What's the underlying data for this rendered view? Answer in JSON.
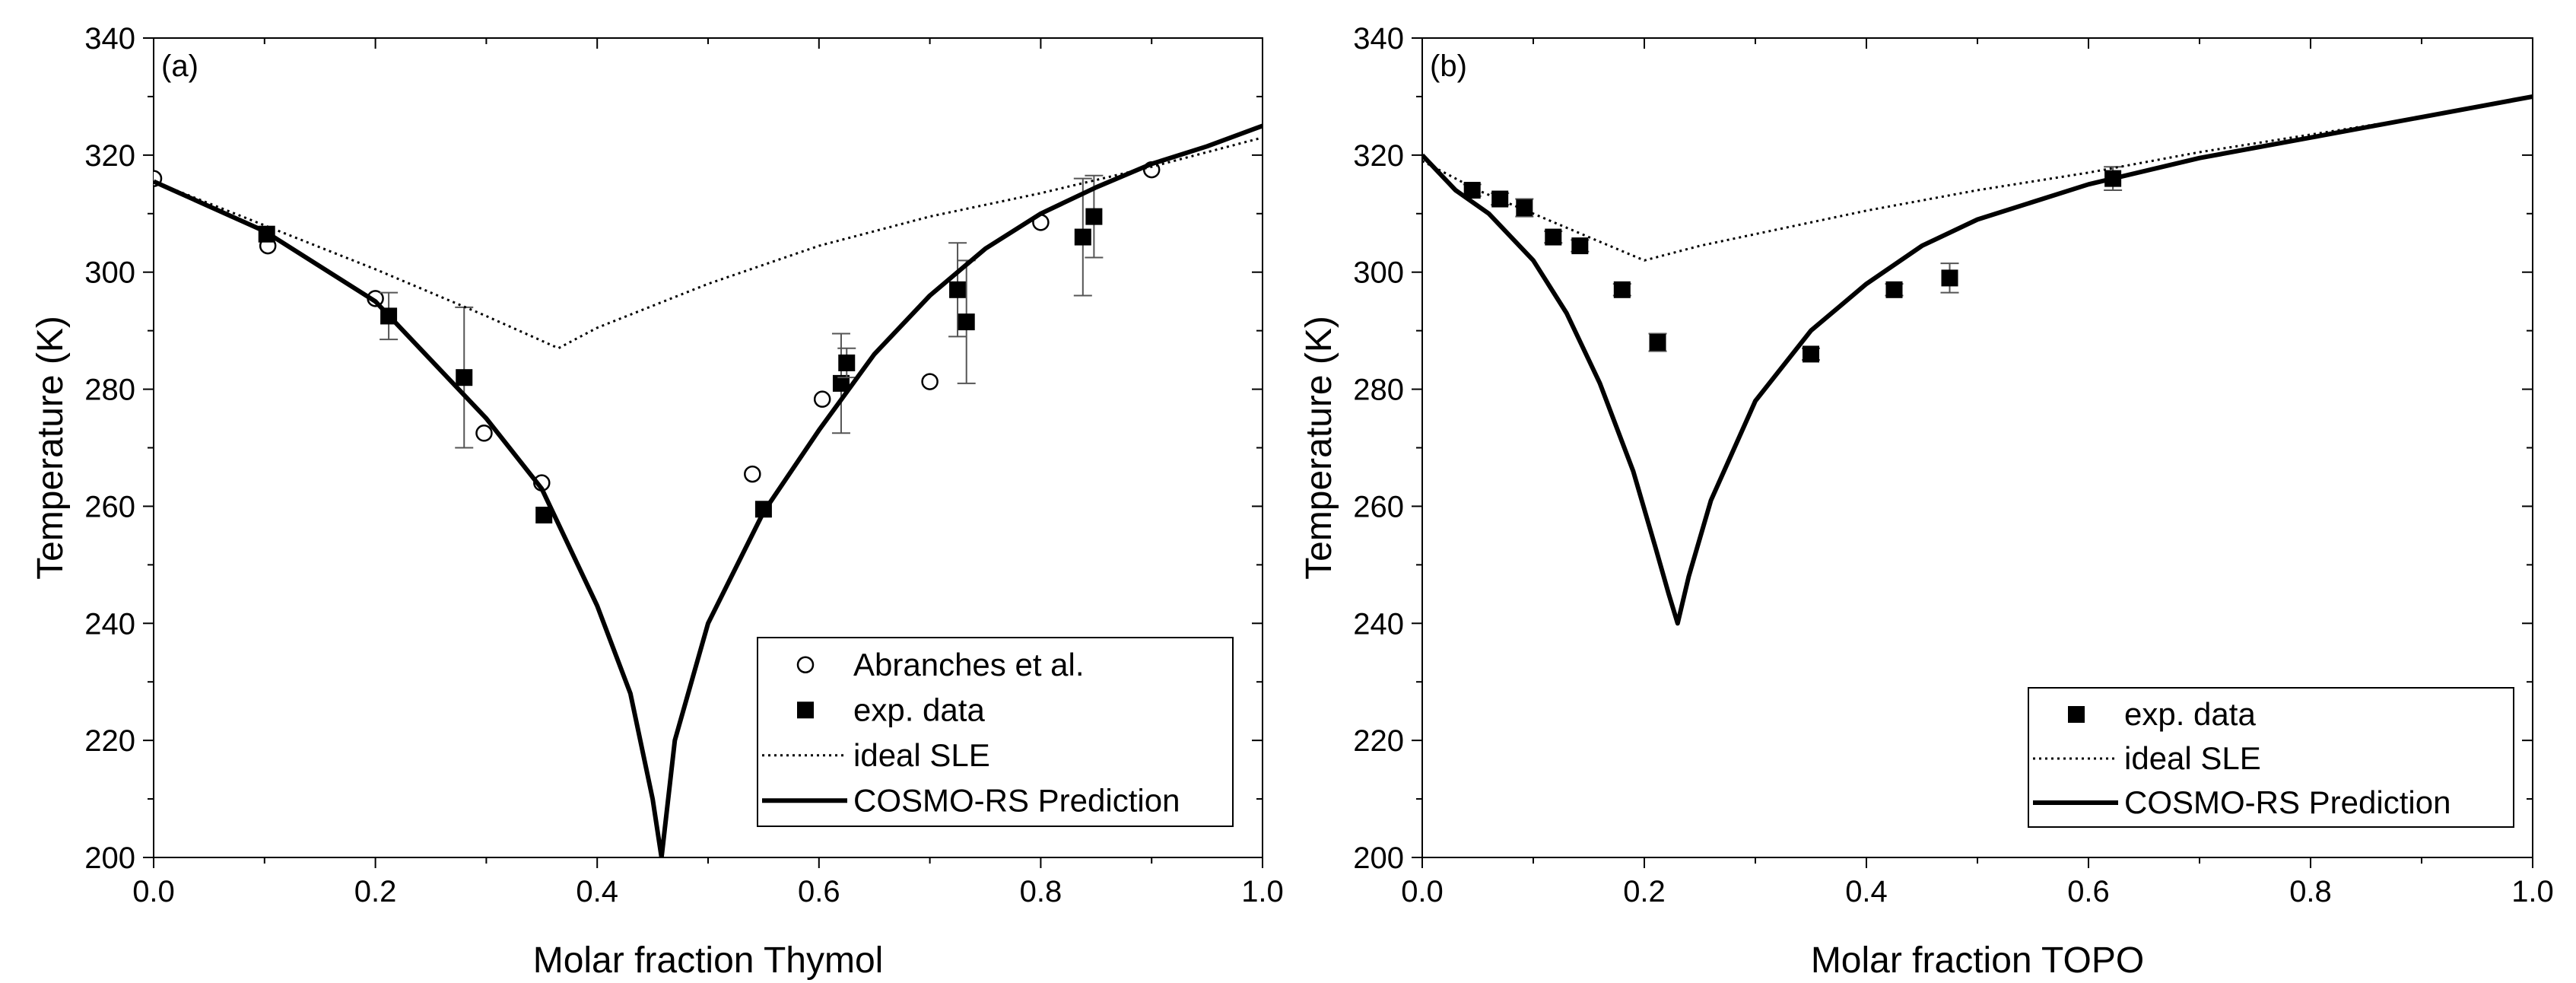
{
  "chart_data": [
    {
      "type": "scatter",
      "panel_label": "(a)",
      "xlabel": "Molar fraction Thymol",
      "ylabel": "Temperature (K)",
      "xlim": [
        0.0,
        1.0
      ],
      "ylim": [
        200,
        340
      ],
      "xticks": [
        "0.0",
        "0.2",
        "0.4",
        "0.6",
        "0.8",
        "1.0"
      ],
      "yticks": [
        "200",
        "220",
        "240",
        "260",
        "280",
        "300",
        "320",
        "340"
      ],
      "legend_position": "bottom-right",
      "series": [
        {
          "name": "Abranches et al.",
          "marker": "open-circle",
          "points": [
            {
              "x": 0.0,
              "y": 316.0
            },
            {
              "x": 0.103,
              "y": 304.5
            },
            {
              "x": 0.2,
              "y": 295.5
            },
            {
              "x": 0.298,
              "y": 272.5
            },
            {
              "x": 0.35,
              "y": 264.0
            },
            {
              "x": 0.54,
              "y": 265.5
            },
            {
              "x": 0.603,
              "y": 278.3
            },
            {
              "x": 0.7,
              "y": 281.3
            },
            {
              "x": 0.8,
              "y": 308.5
            },
            {
              "x": 0.9,
              "y": 317.5
            }
          ]
        },
        {
          "name": "exp. data",
          "marker": "filled-square",
          "points": [
            {
              "x": 0.102,
              "y": 306.5,
              "err": 0
            },
            {
              "x": 0.212,
              "y": 292.5,
              "err": 4.0
            },
            {
              "x": 0.28,
              "y": 282.0,
              "err": 12.0
            },
            {
              "x": 0.352,
              "y": 258.5,
              "err": 0
            },
            {
              "x": 0.55,
              "y": 259.5,
              "err": 0
            },
            {
              "x": 0.62,
              "y": 281.0,
              "err": 8.5
            },
            {
              "x": 0.625,
              "y": 284.5,
              "err": 2.5
            },
            {
              "x": 0.725,
              "y": 297.0,
              "err": 8.0
            },
            {
              "x": 0.733,
              "y": 291.5,
              "err": 10.5
            },
            {
              "x": 0.838,
              "y": 306.0,
              "err": 10.0
            },
            {
              "x": 0.848,
              "y": 309.5,
              "err": 7.0
            }
          ]
        },
        {
          "name": "ideal SLE",
          "style": "dotted",
          "points": [
            {
              "x": 0.0,
              "y": 315.5
            },
            {
              "x": 0.1,
              "y": 308.0
            },
            {
              "x": 0.2,
              "y": 300.5
            },
            {
              "x": 0.3,
              "y": 292.5
            },
            {
              "x": 0.365,
              "y": 287.0
            },
            {
              "x": 0.4,
              "y": 290.5
            },
            {
              "x": 0.5,
              "y": 298.0
            },
            {
              "x": 0.6,
              "y": 304.5
            },
            {
              "x": 0.7,
              "y": 309.5
            },
            {
              "x": 0.8,
              "y": 313.5
            },
            {
              "x": 0.9,
              "y": 318.0
            },
            {
              "x": 1.0,
              "y": 323.0
            }
          ]
        },
        {
          "name": "COSMO-RS Prediction",
          "style": "solid",
          "points": [
            {
              "x": 0.0,
              "y": 315.5
            },
            {
              "x": 0.1,
              "y": 307.0
            },
            {
              "x": 0.2,
              "y": 295.0
            },
            {
              "x": 0.3,
              "y": 275.0
            },
            {
              "x": 0.35,
              "y": 263.0
            },
            {
              "x": 0.4,
              "y": 243.0
            },
            {
              "x": 0.43,
              "y": 228.0
            },
            {
              "x": 0.45,
              "y": 210.0
            },
            {
              "x": 0.458,
              "y": 200.0
            },
            {
              "x": 0.47,
              "y": 220.0
            },
            {
              "x": 0.5,
              "y": 240.0
            },
            {
              "x": 0.55,
              "y": 259.0
            },
            {
              "x": 0.6,
              "y": 273.0
            },
            {
              "x": 0.65,
              "y": 286.0
            },
            {
              "x": 0.7,
              "y": 296.0
            },
            {
              "x": 0.75,
              "y": 304.0
            },
            {
              "x": 0.8,
              "y": 310.0
            },
            {
              "x": 0.85,
              "y": 314.5
            },
            {
              "x": 0.9,
              "y": 318.5
            },
            {
              "x": 0.95,
              "y": 321.5
            },
            {
              "x": 1.0,
              "y": 325.0
            }
          ]
        }
      ]
    },
    {
      "type": "scatter",
      "panel_label": "(b)",
      "xlabel": "Molar fraction TOPO",
      "ylabel": "Temperature (K)",
      "xlim": [
        0.0,
        1.0
      ],
      "ylim": [
        200,
        340
      ],
      "xticks": [
        "0.0",
        "0.2",
        "0.4",
        "0.6",
        "0.8",
        "1.0"
      ],
      "yticks": [
        "200",
        "220",
        "240",
        "260",
        "280",
        "300",
        "320",
        "340"
      ],
      "legend_position": "bottom-right",
      "series": [
        {
          "name": "exp. data",
          "marker": "filled-square",
          "points": [
            {
              "x": 0.045,
              "y": 314.0,
              "err": 1.0
            },
            {
              "x": 0.07,
              "y": 312.5,
              "err": 1.0
            },
            {
              "x": 0.092,
              "y": 311.0,
              "err": 1.5
            },
            {
              "x": 0.118,
              "y": 306.0,
              "err": 1.0
            },
            {
              "x": 0.142,
              "y": 304.5,
              "err": 1.0
            },
            {
              "x": 0.18,
              "y": 297.0,
              "err": 1.0
            },
            {
              "x": 0.212,
              "y": 288.0,
              "err": 1.5
            },
            {
              "x": 0.35,
              "y": 286.0,
              "err": 1.0
            },
            {
              "x": 0.425,
              "y": 297.0,
              "err": 1.0
            },
            {
              "x": 0.475,
              "y": 299.0,
              "err": 2.5
            },
            {
              "x": 0.622,
              "y": 316.0,
              "err": 2.0
            }
          ]
        },
        {
          "name": "ideal SLE",
          "style": "dotted",
          "points": [
            {
              "x": 0.0,
              "y": 319.0
            },
            {
              "x": 0.05,
              "y": 314.0
            },
            {
              "x": 0.1,
              "y": 310.0
            },
            {
              "x": 0.15,
              "y": 306.0
            },
            {
              "x": 0.2,
              "y": 302.0
            },
            {
              "x": 0.25,
              "y": 304.5
            },
            {
              "x": 0.3,
              "y": 306.5
            },
            {
              "x": 0.4,
              "y": 310.5
            },
            {
              "x": 0.5,
              "y": 314.0
            },
            {
              "x": 0.6,
              "y": 317.0
            },
            {
              "x": 0.7,
              "y": 320.5
            },
            {
              "x": 0.8,
              "y": 323.5
            },
            {
              "x": 0.9,
              "y": 326.5
            },
            {
              "x": 1.0,
              "y": 330.0
            }
          ]
        },
        {
          "name": "COSMO-RS Prediction",
          "style": "solid",
          "points": [
            {
              "x": 0.0,
              "y": 320.0
            },
            {
              "x": 0.03,
              "y": 314.0
            },
            {
              "x": 0.06,
              "y": 310.0
            },
            {
              "x": 0.1,
              "y": 302.0
            },
            {
              "x": 0.13,
              "y": 293.0
            },
            {
              "x": 0.16,
              "y": 281.0
            },
            {
              "x": 0.19,
              "y": 266.0
            },
            {
              "x": 0.21,
              "y": 253.0
            },
            {
              "x": 0.222,
              "y": 245.0
            },
            {
              "x": 0.23,
              "y": 240.0
            },
            {
              "x": 0.24,
              "y": 248.0
            },
            {
              "x": 0.26,
              "y": 261.0
            },
            {
              "x": 0.3,
              "y": 278.0
            },
            {
              "x": 0.35,
              "y": 290.0
            },
            {
              "x": 0.4,
              "y": 298.0
            },
            {
              "x": 0.45,
              "y": 304.5
            },
            {
              "x": 0.5,
              "y": 309.0
            },
            {
              "x": 0.6,
              "y": 315.0
            },
            {
              "x": 0.7,
              "y": 319.5
            },
            {
              "x": 0.8,
              "y": 323.0
            },
            {
              "x": 0.9,
              "y": 326.5
            },
            {
              "x": 1.0,
              "y": 330.0
            }
          ]
        }
      ]
    }
  ]
}
